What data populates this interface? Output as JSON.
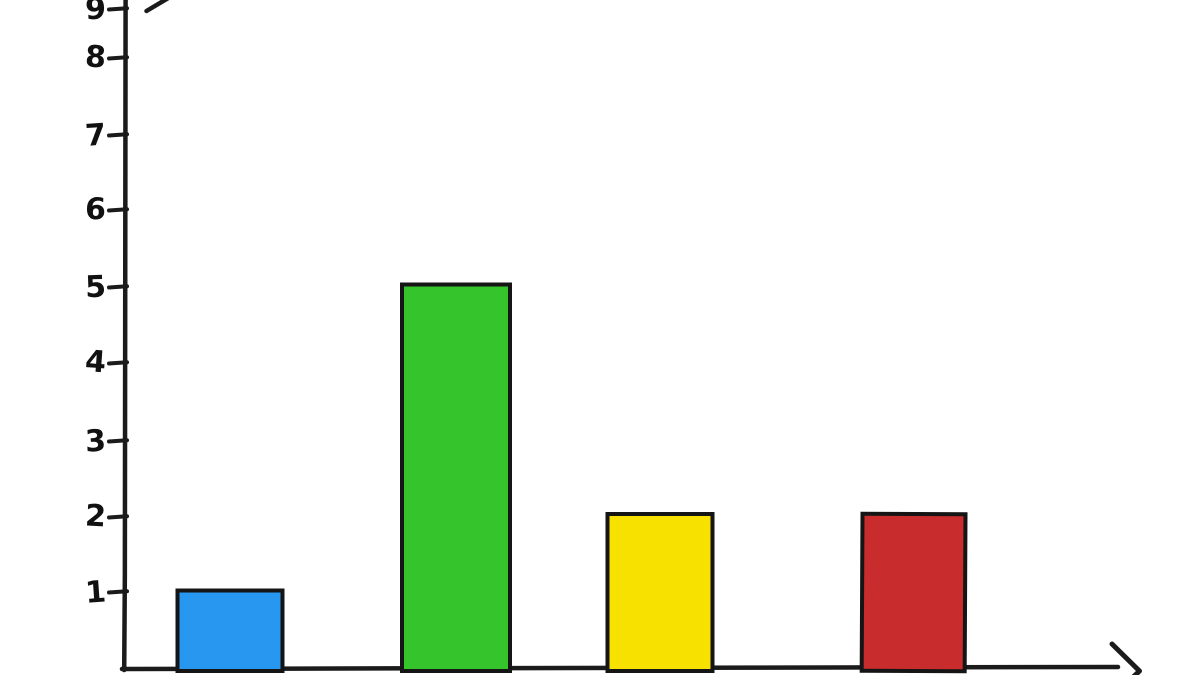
{
  "chart_data": {
    "type": "bar",
    "values": [
      1,
      5,
      2,
      2
    ],
    "bar_color_names": [
      "blue",
      "green",
      "yellow",
      "red"
    ],
    "bar_colors": [
      "#2797F0",
      "#35C42C",
      "#F7E100",
      "#C92C2C"
    ],
    "y_ticks": [
      1,
      2,
      3,
      4,
      5,
      6,
      7,
      8,
      9
    ],
    "y_tick_labels": [
      "1",
      "2",
      "3",
      "4",
      "5",
      "6",
      "7",
      "8",
      "9"
    ],
    "ylim": [
      0,
      9.2
    ],
    "grid": false,
    "legend": false,
    "x_axis_arrow": true,
    "y_axis_arrow_clipped_at_top": true,
    "axis_color": "#1b1b1b",
    "tick_label_color": "#111111",
    "bar_outline_color": "#151515",
    "background_color": "#ffffff",
    "style": "hand-drawn"
  }
}
